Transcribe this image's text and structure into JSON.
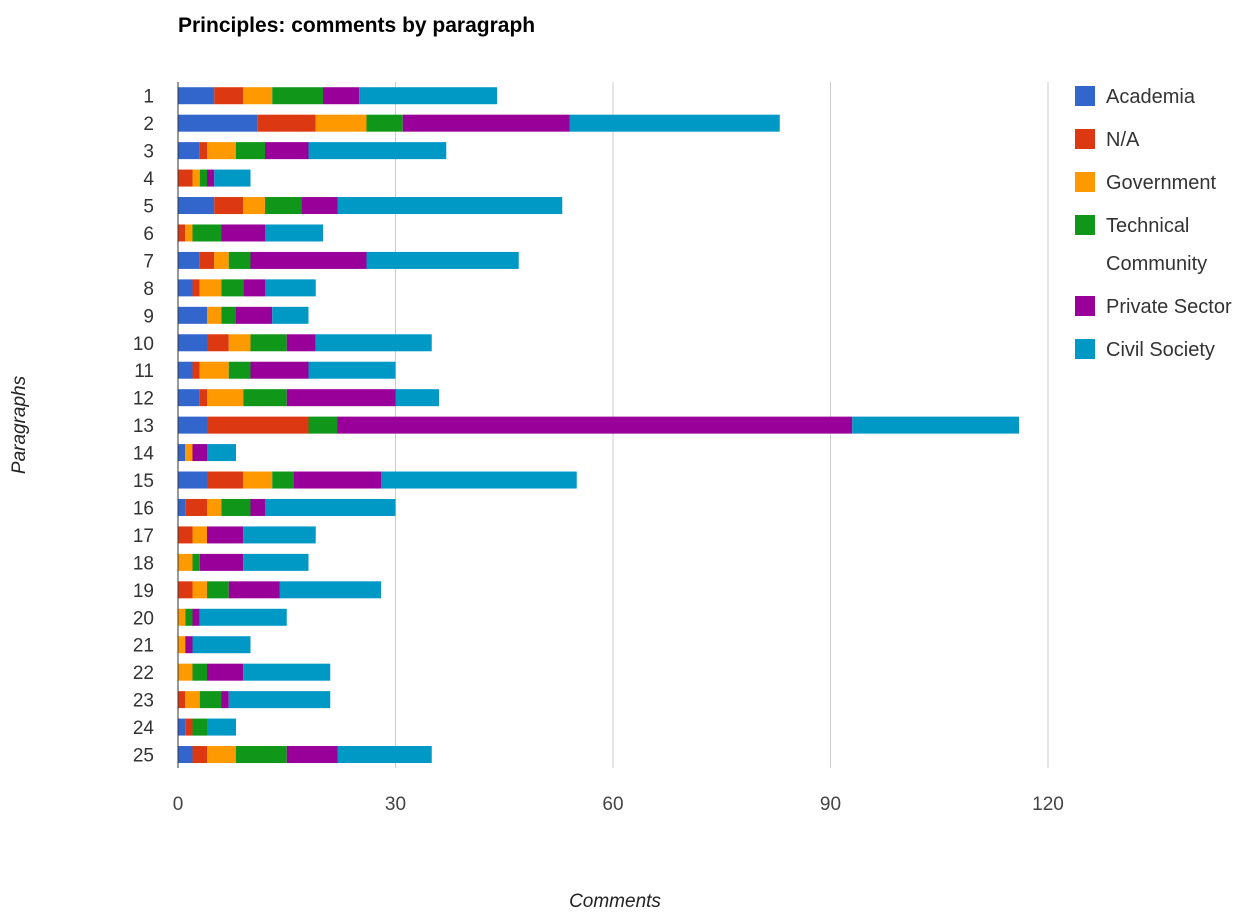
{
  "chart_data": {
    "type": "bar",
    "orientation": "horizontal",
    "stacked": true,
    "title": "Principles: comments by paragraph",
    "xlabel": "Comments",
    "ylabel": "Paragraphs",
    "xlim": [
      0,
      120
    ],
    "xticks": [
      0,
      30,
      60,
      90,
      120
    ],
    "grid": true,
    "legend_position": "right",
    "categories": [
      "1",
      "2",
      "3",
      "4",
      "5",
      "6",
      "7",
      "8",
      "9",
      "10",
      "11",
      "12",
      "13",
      "14",
      "15",
      "16",
      "17",
      "18",
      "19",
      "20",
      "21",
      "22",
      "23",
      "24",
      "25"
    ],
    "series": [
      {
        "name": "Academia",
        "color": "#3366cc",
        "values": [
          5,
          11,
          3,
          0,
          5,
          0,
          3,
          2,
          4,
          4,
          2,
          3,
          4,
          1,
          4,
          1,
          0,
          0,
          0,
          0,
          0,
          0,
          0,
          1,
          2
        ]
      },
      {
        "name": "N/A",
        "color": "#dc3912",
        "values": [
          4,
          8,
          1,
          2,
          4,
          1,
          2,
          1,
          0,
          3,
          1,
          1,
          14,
          0,
          5,
          3,
          2,
          0,
          2,
          0,
          0,
          0,
          1,
          1,
          2
        ]
      },
      {
        "name": "Government",
        "color": "#ff9900",
        "values": [
          4,
          7,
          4,
          1,
          3,
          1,
          2,
          3,
          2,
          3,
          4,
          5,
          0,
          1,
          4,
          2,
          2,
          2,
          2,
          1,
          1,
          2,
          2,
          0,
          4
        ]
      },
      {
        "name": "Technical Community",
        "color": "#109618",
        "values": [
          7,
          5,
          4,
          1,
          5,
          4,
          3,
          3,
          2,
          5,
          3,
          6,
          4,
          0,
          3,
          4,
          0,
          1,
          3,
          1,
          0,
          2,
          3,
          2,
          7
        ]
      },
      {
        "name": "Private Sector",
        "color": "#990099",
        "values": [
          5,
          23,
          6,
          1,
          5,
          6,
          16,
          3,
          5,
          4,
          8,
          15,
          71,
          2,
          12,
          2,
          5,
          6,
          7,
          1,
          1,
          5,
          1,
          0,
          7
        ]
      },
      {
        "name": "Civil Society",
        "color": "#0099c6",
        "values": [
          19,
          29,
          19,
          5,
          31,
          8,
          21,
          7,
          5,
          16,
          12,
          6,
          23,
          4,
          27,
          18,
          10,
          9,
          14,
          12,
          8,
          12,
          14,
          4,
          13
        ]
      }
    ]
  }
}
